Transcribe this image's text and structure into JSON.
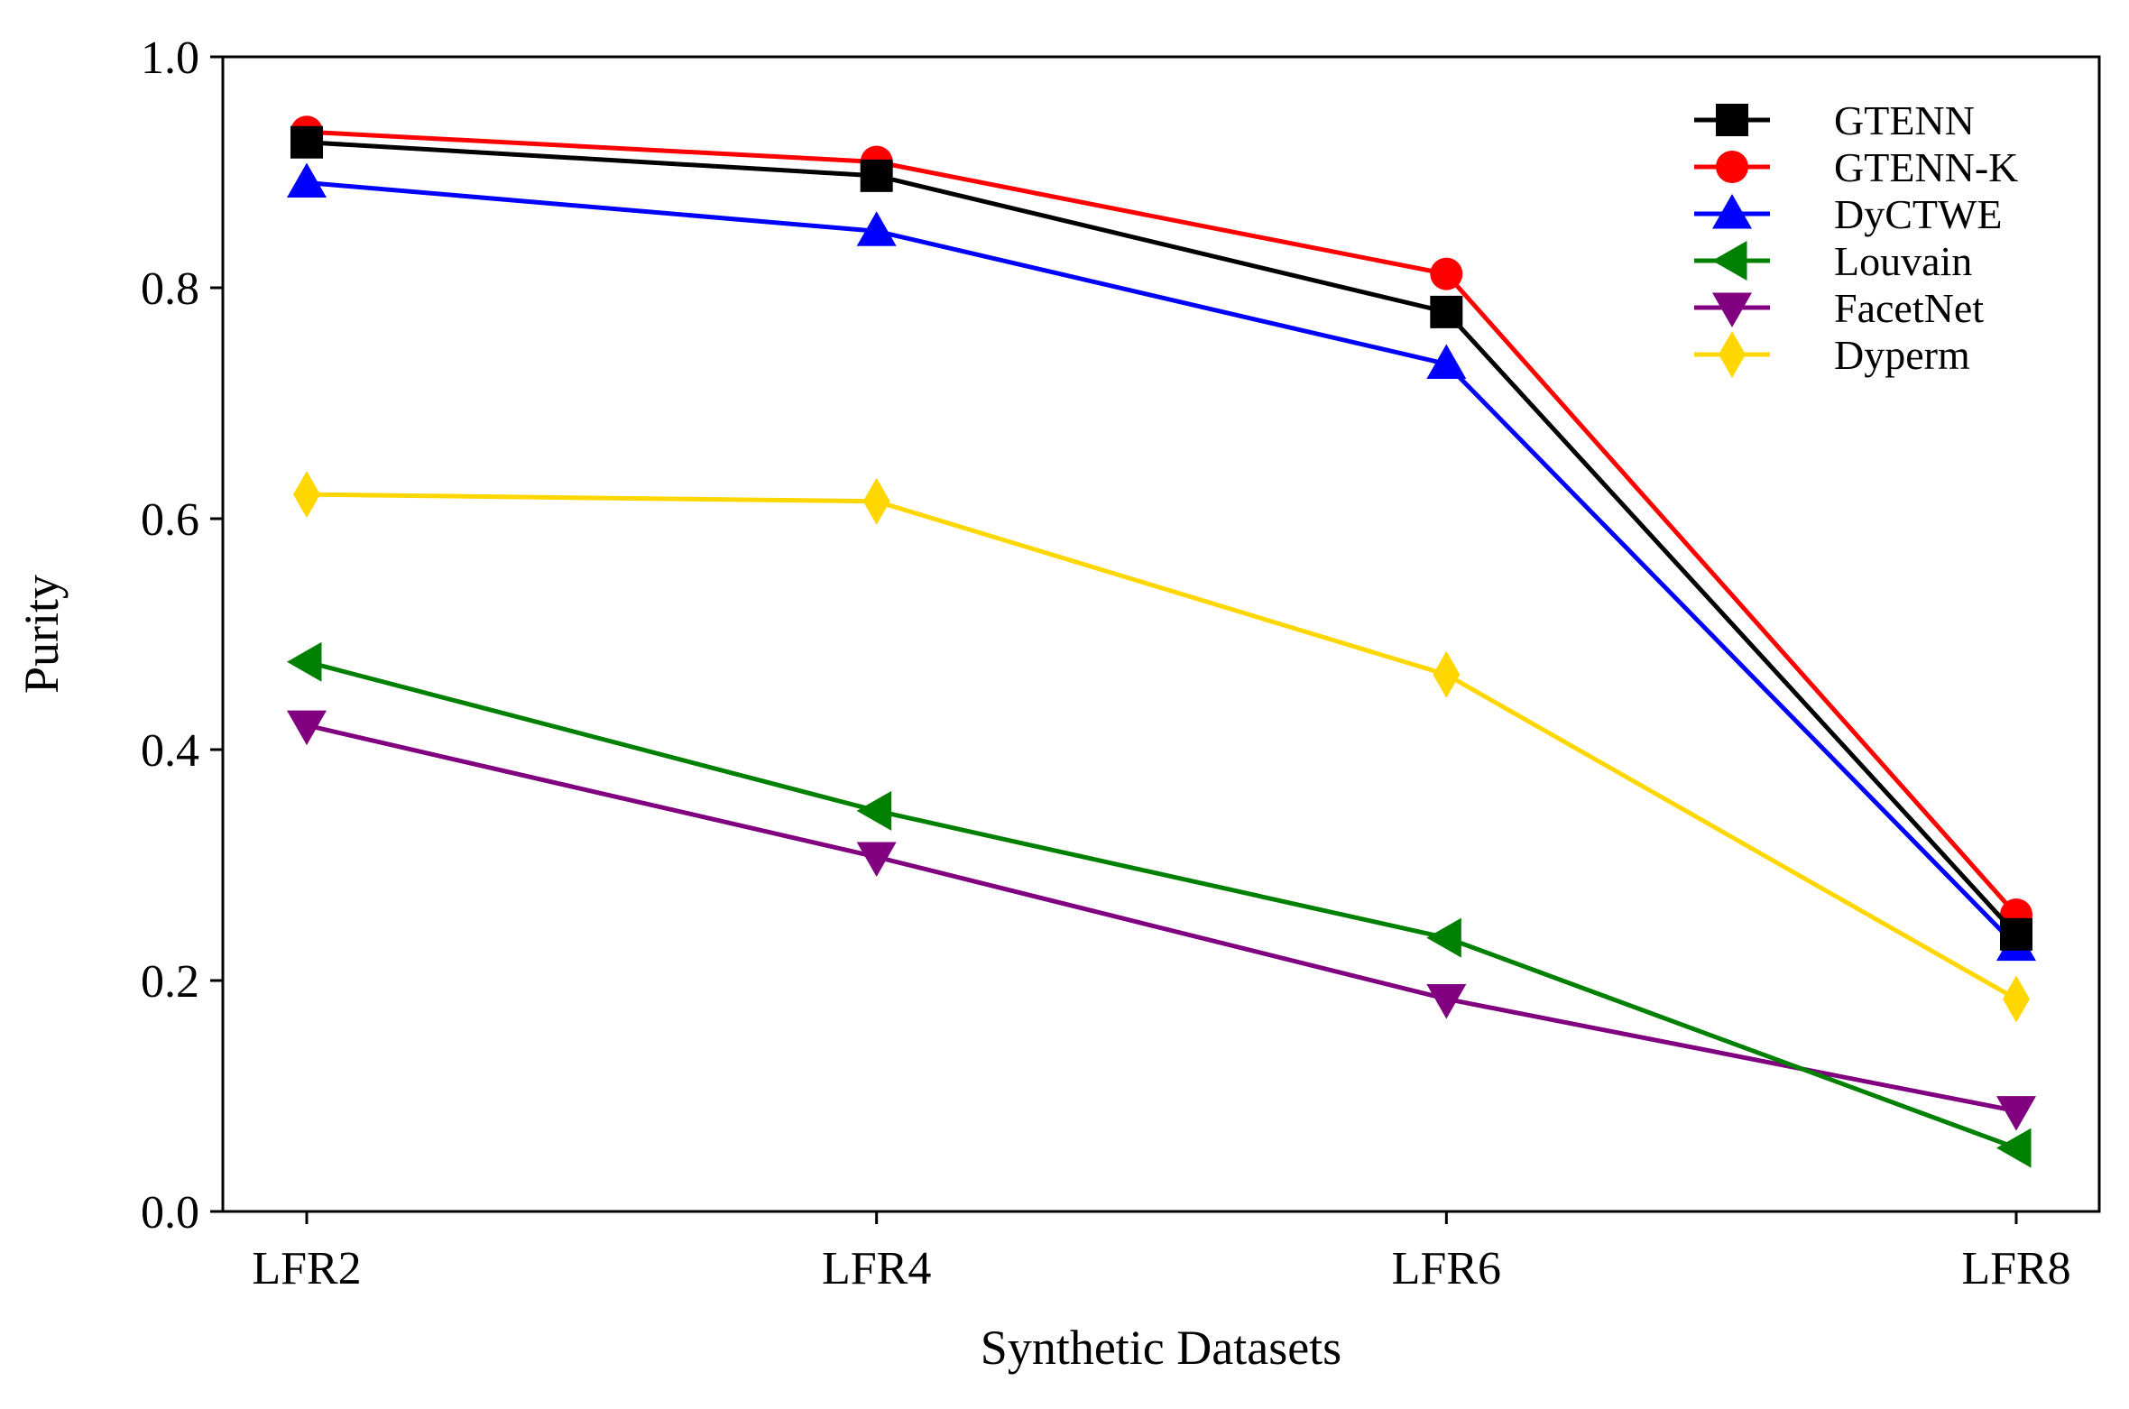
{
  "chart_data": {
    "type": "line",
    "title": "",
    "xlabel": "Synthetic Datasets",
    "ylabel": "Purity",
    "categories": [
      "LFR2",
      "LFR4",
      "LFR6",
      "LFR8"
    ],
    "ylim": [
      0.0,
      1.0
    ],
    "yticks": [
      "0.0",
      "0.2",
      "0.4",
      "0.6",
      "0.8",
      "1.0"
    ],
    "grid": false,
    "legend_position": "top-right",
    "series": [
      {
        "name": "GTENN",
        "color": "#000000",
        "marker": "square",
        "values": [
          0.926,
          0.897,
          0.779,
          0.24
        ]
      },
      {
        "name": "GTENN-K",
        "color": "#ff0000",
        "marker": "circle",
        "values": [
          0.935,
          0.909,
          0.812,
          0.257
        ]
      },
      {
        "name": "DyCTWE",
        "color": "#0000ff",
        "marker": "triangle-up",
        "values": [
          0.891,
          0.849,
          0.734,
          0.23
        ]
      },
      {
        "name": "Louvain",
        "color": "#008000",
        "marker": "triangle-left",
        "values": [
          0.476,
          0.347,
          0.237,
          0.055
        ]
      },
      {
        "name": "FacetNet",
        "color": "#800080",
        "marker": "triangle-down",
        "values": [
          0.421,
          0.307,
          0.184,
          0.087
        ]
      },
      {
        "name": "Dyperm",
        "color": "#ffd700",
        "marker": "diamond",
        "values": [
          0.621,
          0.615,
          0.465,
          0.184
        ]
      }
    ]
  }
}
